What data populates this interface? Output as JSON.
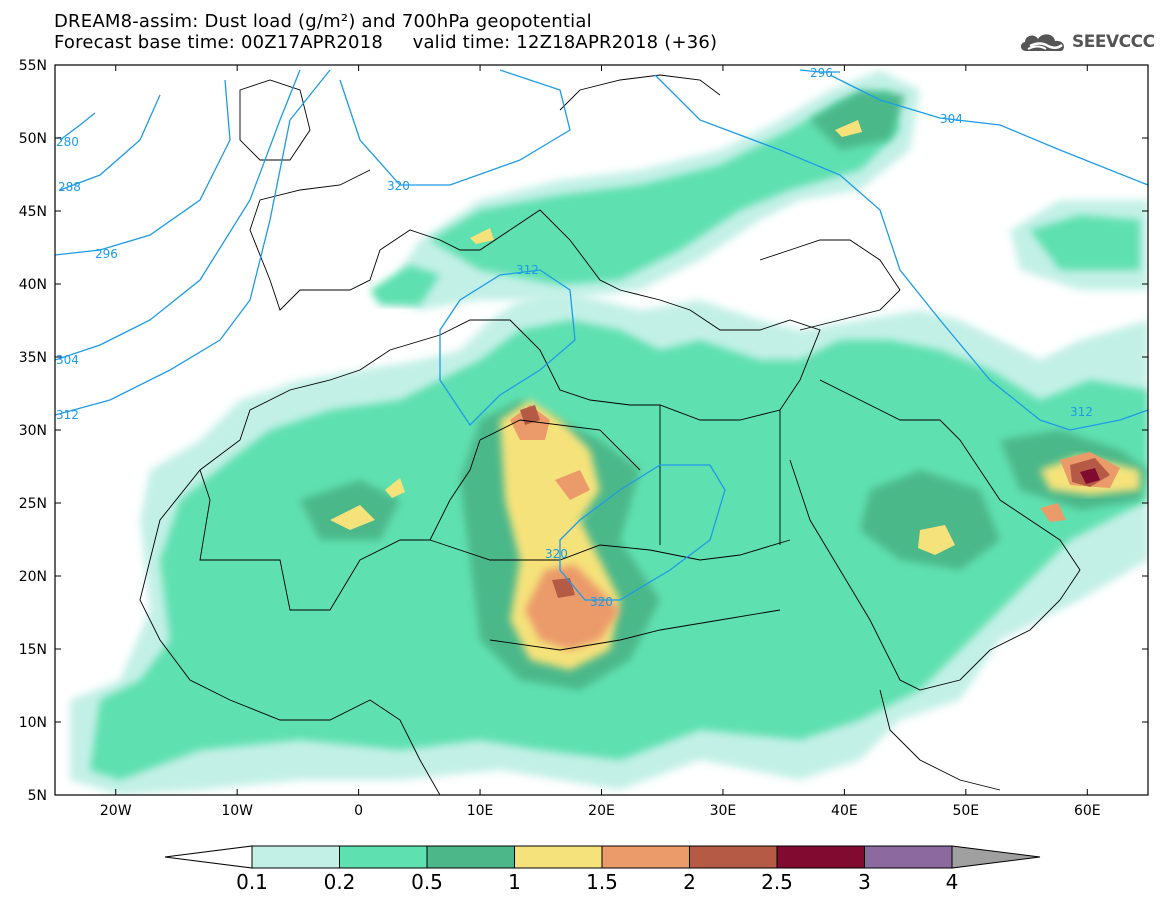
{
  "title": {
    "line1": "DREAM8-assim: Dust load (g/m²) and 700hPa geopotential",
    "line2": "Forecast base time: 00Z17APR2018     valid time: 12Z18APR2018 (+36)"
  },
  "logo": {
    "text": "SEEVCCC",
    "icon": "cloud-logo-icon"
  },
  "map": {
    "lon_range": [
      -25,
      65
    ],
    "lat_range": [
      5,
      55
    ],
    "lat_labels": [
      "55N",
      "50N",
      "45N",
      "40N",
      "35N",
      "30N",
      "25N",
      "20N",
      "15N",
      "10N",
      "5N"
    ],
    "lon_labels": [
      "20W",
      "10W",
      "0",
      "10E",
      "20E",
      "30E",
      "40E",
      "50E",
      "60E"
    ],
    "contour_labels": [
      "296",
      "304",
      "320",
      "312",
      "320",
      "320",
      "312",
      "296",
      "288",
      "280",
      "304",
      "312"
    ]
  },
  "colorbar": {
    "labels": [
      "0.1",
      "0.2",
      "0.5",
      "1",
      "1.5",
      "2",
      "2.5",
      "3",
      "4"
    ],
    "colors": [
      "#c3f0e6",
      "#5ee0b0",
      "#4cb88a",
      "#f5e27a",
      "#eb9a6a",
      "#b55a45",
      "#800a30",
      "#8c6aa0",
      "#a0a0a0"
    ]
  }
}
